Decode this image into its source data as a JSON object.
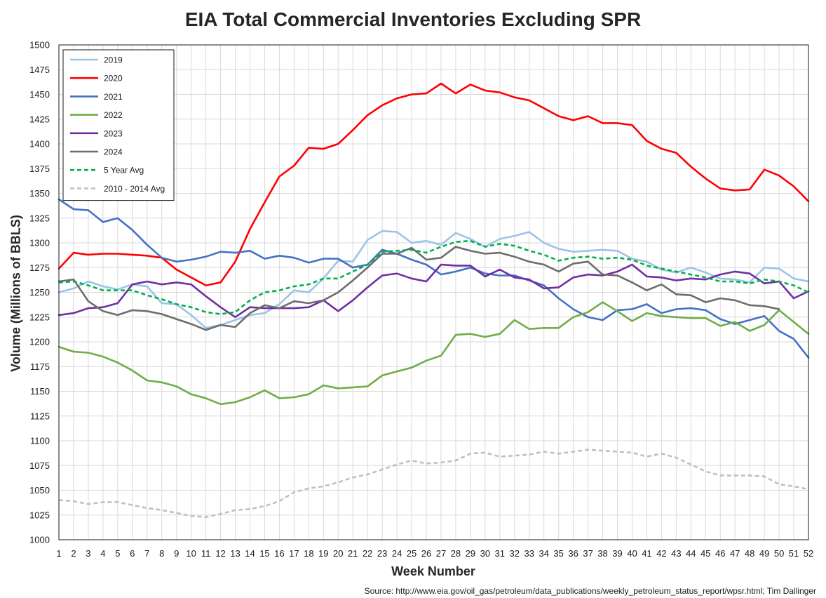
{
  "chart_data": {
    "type": "line",
    "title": "EIA Total Commercial Inventories Excluding SPR",
    "xlabel": "Week Number",
    "ylabel": "Volume (Millions of BBLS)",
    "source": "Source: http://www.eia.gov/oil_gas/petroleum/data_publications/weekly_petroleum_status_report/wpsr.html; Tim Dallinger",
    "ylim": [
      1000,
      1500
    ],
    "ytick_step": 25,
    "x": [
      1,
      2,
      3,
      4,
      5,
      6,
      7,
      8,
      9,
      10,
      11,
      12,
      13,
      14,
      15,
      16,
      17,
      18,
      19,
      20,
      21,
      22,
      23,
      24,
      25,
      26,
      27,
      28,
      29,
      30,
      31,
      32,
      33,
      34,
      35,
      36,
      37,
      38,
      39,
      40,
      41,
      42,
      43,
      44,
      45,
      46,
      47,
      48,
      49,
      50,
      51,
      52
    ],
    "grid": true,
    "legend_position": "top-left",
    "series": [
      {
        "name": "2019",
        "color": "#9dc3e6",
        "dash": false,
        "values": [
          1250,
          1254,
          1261,
          1256,
          1253,
          1258,
          1256,
          1239,
          1238,
          1227,
          1214,
          1217,
          1222,
          1227,
          1229,
          1238,
          1252,
          1250,
          1264,
          1282,
          1281,
          1303,
          1312,
          1311,
          1300,
          1302,
          1298,
          1310,
          1304,
          1296,
          1304,
          1307,
          1311,
          1300,
          1294,
          1291,
          1292,
          1293,
          1292,
          1284,
          1281,
          1273,
          1270,
          1275,
          1270,
          1264,
          1263,
          1260,
          1275,
          1274,
          1264,
          1261
        ]
      },
      {
        "name": "2020",
        "color": "#ff0000",
        "dash": false,
        "values": [
          1274,
          1290,
          1288,
          1289,
          1289,
          1288,
          1287,
          1285,
          1273,
          1265,
          1257,
          1260,
          1281,
          1314,
          1341,
          1367,
          1378,
          1396,
          1395,
          1400,
          1414,
          1429,
          1439,
          1446,
          1450,
          1451,
          1461,
          1451,
          1460,
          1454,
          1452,
          1447,
          1444,
          1436,
          1428,
          1424,
          1428,
          1421,
          1421,
          1419,
          1403,
          1395,
          1391,
          1377,
          1365,
          1355,
          1353,
          1354,
          1374,
          1368,
          1357,
          1342
        ]
      },
      {
        "name": "2021",
        "color": "#4472c4",
        "dash": false,
        "values": [
          1344,
          1334,
          1333,
          1321,
          1325,
          1313,
          1298,
          1285,
          1281,
          1283,
          1286,
          1291,
          1290,
          1292,
          1284,
          1287,
          1285,
          1280,
          1284,
          1284,
          1275,
          1278,
          1293,
          1289,
          1283,
          1278,
          1268,
          1271,
          1275,
          1269,
          1267,
          1267,
          1262,
          1257,
          1244,
          1233,
          1225,
          1222,
          1232,
          1233,
          1238,
          1229,
          1233,
          1234,
          1232,
          1223,
          1218,
          1222,
          1226,
          1211,
          1203,
          1184
        ]
      },
      {
        "name": "2022",
        "color": "#70ad47",
        "dash": false,
        "values": [
          1195,
          1190,
          1189,
          1185,
          1179,
          1171,
          1161,
          1159,
          1155,
          1147,
          1143,
          1137,
          1139,
          1144,
          1151,
          1143,
          1144,
          1147,
          1156,
          1153,
          1154,
          1155,
          1166,
          1170,
          1174,
          1181,
          1186,
          1207,
          1208,
          1205,
          1208,
          1222,
          1213,
          1214,
          1214,
          1225,
          1230,
          1240,
          1231,
          1221,
          1229,
          1226,
          1225,
          1224,
          1224,
          1216,
          1220,
          1211,
          1217,
          1232,
          1220,
          1208
        ]
      },
      {
        "name": "2023",
        "color": "#7030a0",
        "dash": false,
        "values": [
          1227,
          1229,
          1234,
          1235,
          1239,
          1258,
          1261,
          1258,
          1260,
          1258,
          1246,
          1235,
          1225,
          1235,
          1234,
          1234,
          1234,
          1235,
          1242,
          1231,
          1242,
          1255,
          1267,
          1269,
          1264,
          1261,
          1278,
          1277,
          1277,
          1266,
          1273,
          1265,
          1263,
          1254,
          1255,
          1265,
          1268,
          1267,
          1271,
          1278,
          1266,
          1265,
          1262,
          1264,
          1263,
          1268,
          1271,
          1269,
          1259,
          1261,
          1244,
          1251
        ]
      },
      {
        "name": "2024",
        "color": "#6d6d6d",
        "dash": false,
        "values": [
          1261,
          1263,
          1241,
          1231,
          1227,
          1232,
          1231,
          1228,
          1223,
          1218,
          1212,
          1217,
          1215,
          1229,
          1237,
          1234,
          1241,
          1239,
          1242,
          1250,
          1262,
          1275,
          1289,
          1289,
          1295,
          1283,
          1285,
          1296,
          1292,
          1289,
          1290,
          1286,
          1281,
          1278,
          1271,
          1279,
          1281,
          1268,
          1267,
          1260,
          1252,
          1258,
          1248,
          1247,
          1240,
          1244,
          1242,
          1237,
          1236,
          1233,
          null,
          null
        ]
      },
      {
        "name": "5 Year Avg",
        "color": "#00b050",
        "dash": true,
        "values": [
          1260,
          1261,
          1257,
          1252,
          1252,
          1252,
          1247,
          1243,
          1238,
          1235,
          1230,
          1228,
          1230,
          1242,
          1250,
          1252,
          1256,
          1258,
          1264,
          1264,
          1271,
          1278,
          1291,
          1292,
          1293,
          1290,
          1296,
          1301,
          1302,
          1296,
          1299,
          1297,
          1292,
          1288,
          1282,
          1285,
          1286,
          1284,
          1285,
          1283,
          1277,
          1274,
          1271,
          1268,
          1265,
          1261,
          1261,
          1259,
          1263,
          1261,
          1257,
          1250
        ]
      },
      {
        "name": "2010 - 2014 Avg",
        "color": "#c0c0c0",
        "dash": true,
        "values": [
          1040,
          1039,
          1036,
          1038,
          1038,
          1035,
          1032,
          1030,
          1027,
          1024,
          1023,
          1026,
          1030,
          1031,
          1034,
          1039,
          1048,
          1052,
          1054,
          1058,
          1063,
          1066,
          1071,
          1076,
          1080,
          1077,
          1078,
          1080,
          1087,
          1088,
          1084,
          1085,
          1086,
          1089,
          1087,
          1089,
          1091,
          1090,
          1089,
          1088,
          1084,
          1087,
          1083,
          1076,
          1069,
          1065,
          1065,
          1065,
          1064,
          1056,
          1054,
          1051
        ]
      }
    ]
  }
}
